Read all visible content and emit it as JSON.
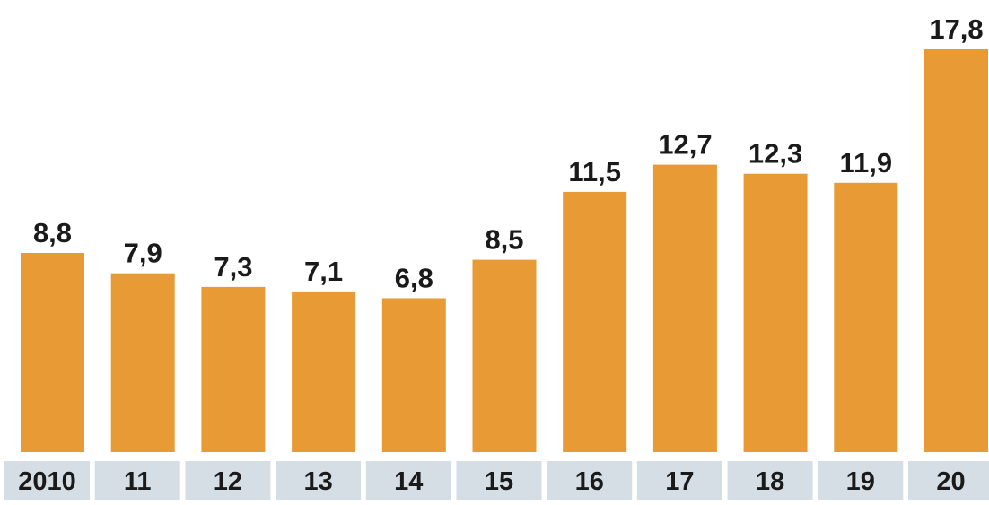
{
  "chart_data": {
    "type": "bar",
    "categories": [
      "2010",
      "11",
      "12",
      "13",
      "14",
      "15",
      "16",
      "17",
      "18",
      "19",
      "20"
    ],
    "values": [
      8.8,
      7.9,
      7.3,
      7.1,
      6.8,
      8.5,
      11.5,
      12.7,
      12.3,
      11.9,
      17.8
    ],
    "data_labels": [
      "8,8",
      "7,9",
      "7,3",
      "7,1",
      "6,8",
      "8,5",
      "11,5",
      "12,7",
      "12,3",
      "11,9",
      "17,8"
    ],
    "title": "",
    "xlabel": "",
    "ylabel": "",
    "ylim": [
      0,
      17.8
    ],
    "grid": false,
    "legend": "none",
    "colors": {
      "bar": "#E89A35",
      "category_band": "#D6DEE5",
      "text": "#1A1A1A",
      "background": "#FFFFFF"
    }
  }
}
